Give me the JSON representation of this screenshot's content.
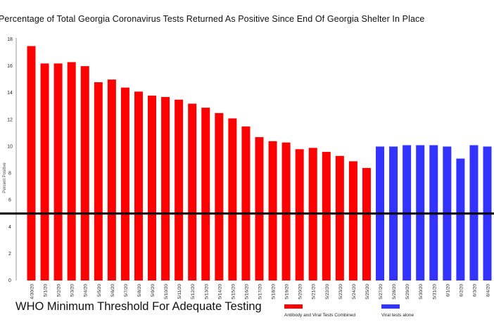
{
  "chart_data": {
    "type": "bar",
    "title": "Percentage of Total Georgia Coronavirus Tests Returned As Positive Since End Of Georgia Shelter In Place",
    "xlabel": "",
    "ylabel": "Percent Positive",
    "ylim": [
      0,
      18
    ],
    "yticks": [
      0,
      2,
      4,
      6,
      8,
      10,
      12,
      14,
      16,
      18
    ],
    "grid": false,
    "categories": [
      "4/30/20",
      "5/1/20",
      "5/2/20",
      "5/3/20",
      "5/4/20",
      "5/5/20",
      "5/6/20",
      "5/7/20",
      "5/8/20",
      "5/9/20",
      "5/10/20",
      "5/11/20",
      "5/12/20",
      "5/13/20",
      "5/14/20",
      "5/15/20",
      "5/16/20",
      "5/17/20",
      "5/18/20",
      "5/19/20",
      "5/20/20",
      "5/21/20",
      "5/22/20",
      "5/23/20",
      "5/24/20",
      "5/25/20",
      "5/27/20",
      "5/28/20",
      "5/29/20",
      "5/30/20",
      "5/31/20",
      "6/1/20",
      "6/2/20",
      "6/3/20",
      "6/4/20"
    ],
    "series": [
      {
        "name": "Antibody and Viral Tests Combined",
        "color": "#ff0000",
        "values": [
          17.5,
          16.2,
          16.2,
          16.3,
          16.0,
          14.8,
          15.0,
          14.4,
          14.1,
          13.8,
          13.7,
          13.5,
          13.2,
          12.9,
          12.5,
          12.1,
          11.5,
          10.7,
          10.4,
          10.3,
          9.8,
          9.9,
          9.6,
          9.3,
          8.9,
          8.4,
          null,
          null,
          null,
          null,
          null,
          null,
          null,
          null,
          null
        ]
      },
      {
        "name": "Viral tests alone",
        "color": "#3333ff",
        "values": [
          null,
          null,
          null,
          null,
          null,
          null,
          null,
          null,
          null,
          null,
          null,
          null,
          null,
          null,
          null,
          null,
          null,
          null,
          null,
          null,
          null,
          null,
          null,
          null,
          null,
          null,
          10.0,
          10.0,
          10.1,
          10.1,
          10.1,
          10.0,
          9.1,
          10.1,
          10.0
        ]
      }
    ],
    "threshold": {
      "value": 5,
      "label": "WHO Minimum Threshold For Adequate Testing",
      "color": "#000000"
    },
    "legend": {
      "placement": "bottom-right"
    }
  }
}
